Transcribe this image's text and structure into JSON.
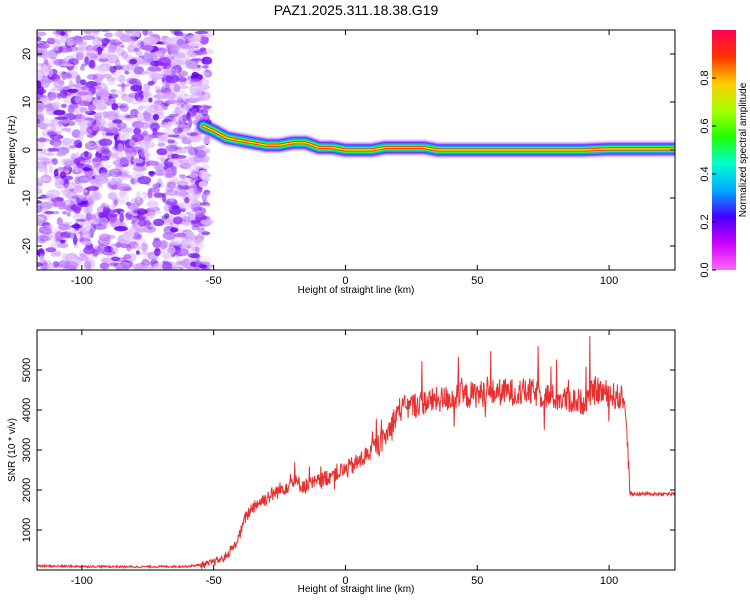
{
  "title": "PAZ1.2025.311.18.38.G19",
  "chart_data": [
    {
      "type": "heatmap",
      "xlabel": "Height of straight line (km)",
      "ylabel": "Frequency (Hz)",
      "xlim": [
        -117,
        125
      ],
      "ylim": [
        -25,
        25
      ],
      "xticks": [
        -100,
        -50,
        0,
        50,
        100
      ],
      "yticks": [
        -20,
        -10,
        0,
        10,
        20
      ],
      "colorbar": {
        "label": "Normalized spectral amplitude",
        "range": [
          0,
          1
        ],
        "ticks": [
          "0.0",
          "0.2",
          "0.4",
          "0.6",
          "0.8"
        ],
        "colors": [
          "#ff66ff",
          "#cc00ff",
          "#4400ff",
          "#00aaff",
          "#00ffcc",
          "#22ff00",
          "#aaff00",
          "#ffcc00",
          "#ff3300",
          "#ff0055"
        ]
      },
      "noise_region_x": [
        -117,
        -52
      ],
      "signal_ridge": {
        "x": [
          -54,
          -50,
          -45,
          -40,
          -35,
          -30,
          -25,
          -20,
          -15,
          -10,
          -5,
          0,
          5,
          10,
          15,
          20,
          25,
          30,
          35,
          40,
          50,
          60,
          70,
          80,
          90,
          100,
          110,
          125
        ],
        "frequency_hz": [
          5,
          4,
          2.5,
          2,
          1.5,
          1,
          1,
          1.5,
          1.5,
          0.5,
          0.5,
          0,
          0,
          0,
          0.5,
          0.5,
          0.5,
          0.5,
          0,
          0,
          0,
          0,
          0,
          0,
          0,
          0.2,
          0.2,
          0.2
        ]
      }
    },
    {
      "type": "line",
      "xlabel": "Height of straight line (km)",
      "ylabel": "SNR (10 * v/v)",
      "xlim": [
        -117,
        125
      ],
      "ylim": [
        0,
        6000
      ],
      "xticks": [
        -100,
        -50,
        0,
        50,
        100
      ],
      "yticks": [
        1000,
        2000,
        3000,
        4000,
        5000
      ],
      "line_color": "#e83030",
      "series": [
        {
          "name": "SNR",
          "x": [
            -117,
            -100,
            -80,
            -60,
            -52,
            -46,
            -42,
            -40,
            -38,
            -35,
            -30,
            -25,
            -20,
            -15,
            -10,
            -5,
            0,
            5,
            10,
            15,
            20,
            25,
            30,
            40,
            50,
            60,
            70,
            80,
            90,
            95,
            100,
            106,
            108,
            115,
            125
          ],
          "y": [
            100,
            90,
            80,
            90,
            150,
            300,
            600,
            900,
            1300,
            1600,
            1800,
            2000,
            2200,
            2100,
            2200,
            2400,
            2500,
            2700,
            3000,
            3300,
            4000,
            4100,
            4200,
            4300,
            4400,
            4450,
            4450,
            4300,
            4200,
            4500,
            4400,
            4250,
            1900,
            1900,
            1900
          ]
        }
      ]
    }
  ]
}
